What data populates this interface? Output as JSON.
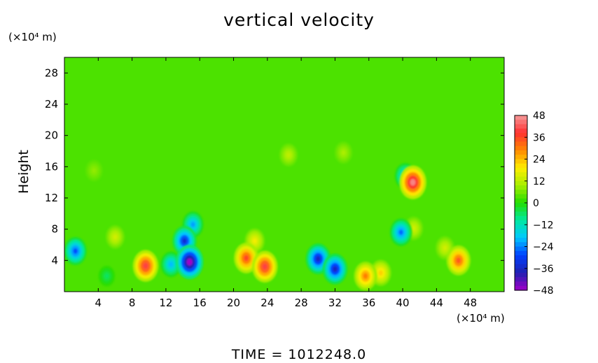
{
  "chart_data": {
    "type": "heatmap",
    "title": "vertical velocity",
    "ylabel": "Height",
    "y_unit": "(×10⁴ m)",
    "x_unit": "(×10⁴ m)",
    "xlim": [
      0,
      52
    ],
    "ylim": [
      0,
      30
    ],
    "x_ticks": [
      "4",
      "8",
      "12",
      "16",
      "20",
      "24",
      "28",
      "32",
      "36",
      "40",
      "44",
      "48"
    ],
    "y_ticks": [
      "4",
      "8",
      "12",
      "16",
      "20",
      "24",
      "28"
    ],
    "colorbar": {
      "min": -48,
      "max": 48,
      "tick_labels": [
        "48",
        "36",
        "24",
        "12",
        "0",
        "−12",
        "−24",
        "−36",
        "−48"
      ],
      "colors": [
        "#f59a9a",
        "#ff3030",
        "#ff8800",
        "#ffee00",
        "#a8ee00",
        "#22dd00",
        "#00e8a0",
        "#00c8ff",
        "#0040ff",
        "#2020b0",
        "#a000c8"
      ]
    },
    "background_value": 3,
    "features": [
      {
        "x": 14.8,
        "y": 3.8,
        "value": -48
      },
      {
        "x": 14.2,
        "y": 6.5,
        "value": -34
      },
      {
        "x": 15.2,
        "y": 8.6,
        "value": -22
      },
      {
        "x": 12.6,
        "y": 3.5,
        "value": -20
      },
      {
        "x": 1.3,
        "y": 5.2,
        "value": -28
      },
      {
        "x": 9.6,
        "y": 3.3,
        "value": 40
      },
      {
        "x": 21.5,
        "y": 4.3,
        "value": 36
      },
      {
        "x": 23.7,
        "y": 3.2,
        "value": 40
      },
      {
        "x": 22.5,
        "y": 6.5,
        "value": 18
      },
      {
        "x": 30.0,
        "y": 4.2,
        "value": -36
      },
      {
        "x": 32.0,
        "y": 2.9,
        "value": -36
      },
      {
        "x": 35.6,
        "y": 2.0,
        "value": 30
      },
      {
        "x": 37.4,
        "y": 2.4,
        "value": 22
      },
      {
        "x": 41.2,
        "y": 14.0,
        "value": 46
      },
      {
        "x": 40.3,
        "y": 14.8,
        "value": -22
      },
      {
        "x": 39.8,
        "y": 7.6,
        "value": -26
      },
      {
        "x": 46.6,
        "y": 4.0,
        "value": 34
      },
      {
        "x": 45.0,
        "y": 5.6,
        "value": 14
      },
      {
        "x": 6.0,
        "y": 7.0,
        "value": 14
      },
      {
        "x": 5.0,
        "y": 2.0,
        "value": -6
      },
      {
        "x": 41.3,
        "y": 8.1,
        "value": 14
      },
      {
        "x": 26.5,
        "y": 17.5,
        "value": 12
      },
      {
        "x": 33.0,
        "y": 17.8,
        "value": 10
      },
      {
        "x": 3.5,
        "y": 15.5,
        "value": 8
      }
    ]
  },
  "footer": {
    "time_label": "TIME  =  1012248.0"
  }
}
